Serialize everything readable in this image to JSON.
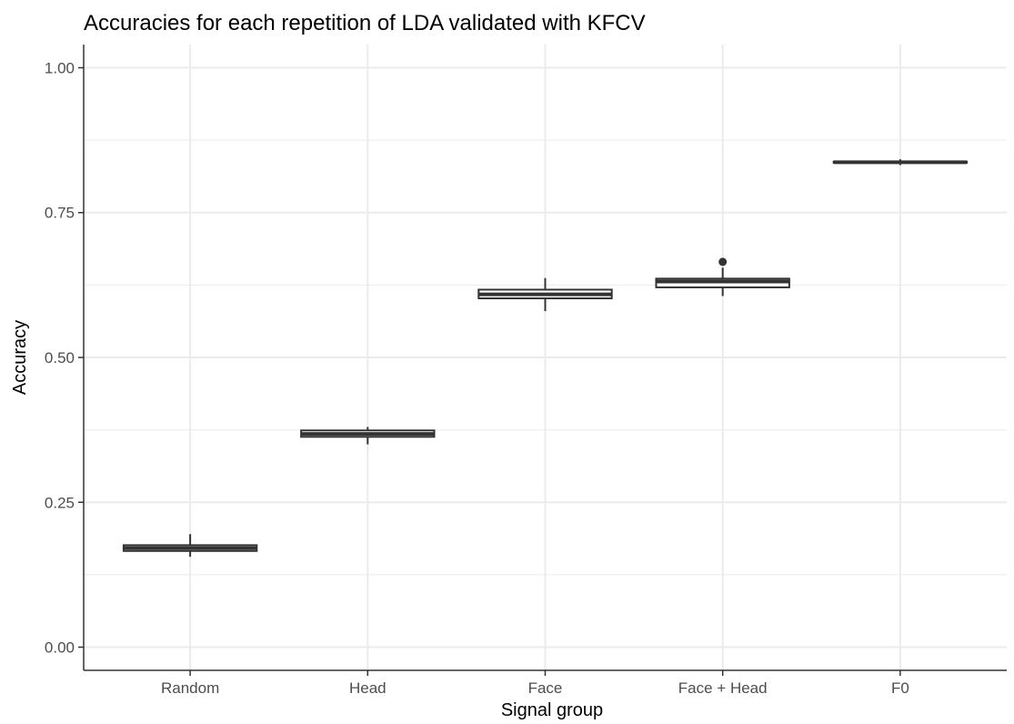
{
  "chart_data": {
    "type": "box",
    "title": "Accuracies for each repetition of LDA validated with KFCV",
    "xlabel": "Signal group",
    "ylabel": "Accuracy",
    "ylim": [
      -0.04,
      1.04
    ],
    "yticks": [
      0.0,
      0.25,
      0.5,
      0.75,
      1.0
    ],
    "ytick_labels": [
      "0.00",
      "0.25",
      "0.50",
      "0.75",
      "1.00"
    ],
    "grid": true,
    "categories": [
      "Random",
      "Head",
      "Face",
      "Face + Head",
      "F0"
    ],
    "boxes": [
      {
        "category": "Random",
        "min": 0.156,
        "q1": 0.166,
        "median": 0.171,
        "q3": 0.176,
        "max": 0.195,
        "outliers": []
      },
      {
        "category": "Head",
        "min": 0.35,
        "q1": 0.363,
        "median": 0.368,
        "q3": 0.374,
        "max": 0.38,
        "outliers": []
      },
      {
        "category": "Face",
        "min": 0.58,
        "q1": 0.602,
        "median": 0.609,
        "q3": 0.617,
        "max": 0.637,
        "outliers": []
      },
      {
        "category": "Face + Head",
        "min": 0.606,
        "q1": 0.621,
        "median": 0.631,
        "q3": 0.636,
        "max": 0.655,
        "outliers": [
          0.665
        ]
      },
      {
        "category": "F0",
        "min": 0.832,
        "q1": 0.836,
        "median": 0.837,
        "q3": 0.838,
        "max": 0.842,
        "outliers": []
      }
    ],
    "colors": {
      "box_stroke": "#333333",
      "box_fill": "#ffffff",
      "grid": "#ebebeb",
      "panel_border": "#333333",
      "tick_text": "#4d4d4d"
    }
  }
}
